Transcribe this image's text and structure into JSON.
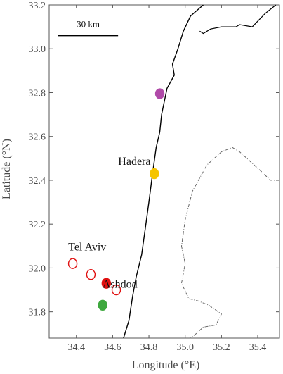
{
  "map": {
    "xlabel": "Longitude (°E)",
    "ylabel": "Latitude (°N)",
    "xlim": [
      34.25,
      35.52
    ],
    "ylim": [
      31.68,
      33.2
    ],
    "x_ticks": [
      {
        "value": 34.4,
        "label": "34.4"
      },
      {
        "value": 34.6,
        "label": "34.6"
      },
      {
        "value": 34.8,
        "label": "34.8"
      },
      {
        "value": 35.0,
        "label": "35.0"
      },
      {
        "value": 35.2,
        "label": "35.2"
      },
      {
        "value": 35.4,
        "label": "35.4"
      }
    ],
    "y_ticks": [
      {
        "value": 31.8,
        "label": "31.8"
      },
      {
        "value": 32.0,
        "label": "32.0"
      },
      {
        "value": 32.2,
        "label": "32.2"
      },
      {
        "value": 32.4,
        "label": "32.4"
      },
      {
        "value": 32.6,
        "label": "32.6"
      },
      {
        "value": 32.8,
        "label": "32.8"
      },
      {
        "value": 33.0,
        "label": "33.0"
      },
      {
        "value": 33.2,
        "label": "33.2"
      }
    ],
    "scale_bar": {
      "label": "30 km",
      "from_lon": 34.3,
      "to_lon": 34.63,
      "lat": 33.06
    },
    "places": [
      {
        "name": "Hadera",
        "lon": 34.72,
        "lat": 32.47
      },
      {
        "name": "Tel Aviv",
        "lon": 34.46,
        "lat": 32.08
      },
      {
        "name": "Ashdod",
        "lon": 34.64,
        "lat": 31.91
      }
    ],
    "markers": [
      {
        "lon": 34.86,
        "lat": 32.795,
        "fill": "#b04aa8",
        "stroke": "#b04aa8"
      },
      {
        "lon": 34.83,
        "lat": 32.43,
        "fill": "#f5c400",
        "stroke": "#f5c400"
      },
      {
        "lon": 34.38,
        "lat": 32.02,
        "fill": "none",
        "stroke": "#e01010"
      },
      {
        "lon": 34.48,
        "lat": 31.97,
        "fill": "none",
        "stroke": "#e01010"
      },
      {
        "lon": 34.62,
        "lat": 31.9,
        "fill": "none",
        "stroke": "#e01010"
      },
      {
        "lon": 34.565,
        "lat": 31.93,
        "fill": "#e01010",
        "stroke": "#e01010"
      },
      {
        "lon": 34.545,
        "lat": 31.83,
        "fill": "#3ea83e",
        "stroke": "#3ea83e"
      }
    ],
    "coastline": [
      [
        34.66,
        31.68
      ],
      [
        34.69,
        31.76
      ],
      [
        34.71,
        31.87
      ],
      [
        34.73,
        31.96
      ],
      [
        34.76,
        32.06
      ],
      [
        34.78,
        32.18
      ],
      [
        34.8,
        32.3
      ],
      [
        34.82,
        32.43
      ],
      [
        34.84,
        32.55
      ],
      [
        34.86,
        32.62
      ],
      [
        34.87,
        32.7
      ],
      [
        34.9,
        32.82
      ],
      [
        34.94,
        32.88
      ],
      [
        34.93,
        32.93
      ],
      [
        34.96,
        33.0
      ],
      [
        34.99,
        33.08
      ],
      [
        35.03,
        33.15
      ],
      [
        35.1,
        33.2
      ]
    ],
    "border_north": [
      [
        35.08,
        33.08
      ],
      [
        35.1,
        33.07
      ],
      [
        35.14,
        33.09
      ],
      [
        35.2,
        33.1
      ],
      [
        35.28,
        33.1
      ],
      [
        35.3,
        33.11
      ],
      [
        35.37,
        33.1
      ],
      [
        35.44,
        33.16
      ],
      [
        35.5,
        33.2
      ]
    ],
    "west_bank_boundary": [
      [
        35.52,
        32.4
      ],
      [
        35.47,
        32.4
      ],
      [
        35.42,
        32.44
      ],
      [
        35.3,
        32.53
      ],
      [
        35.26,
        32.55
      ],
      [
        35.2,
        32.53
      ],
      [
        35.12,
        32.47
      ],
      [
        35.04,
        32.35
      ],
      [
        35.0,
        32.22
      ],
      [
        34.98,
        32.1
      ],
      [
        35.0,
        32.02
      ],
      [
        34.98,
        31.93
      ],
      [
        35.02,
        31.86
      ],
      [
        35.07,
        31.85
      ],
      [
        35.13,
        31.83
      ],
      [
        35.2,
        31.79
      ],
      [
        35.17,
        31.74
      ],
      [
        35.1,
        31.73
      ],
      [
        35.06,
        31.7
      ],
      [
        35.03,
        31.68
      ]
    ],
    "colors": {
      "axis": "#555555",
      "coast": "#000000",
      "boundary": "#666666"
    }
  }
}
